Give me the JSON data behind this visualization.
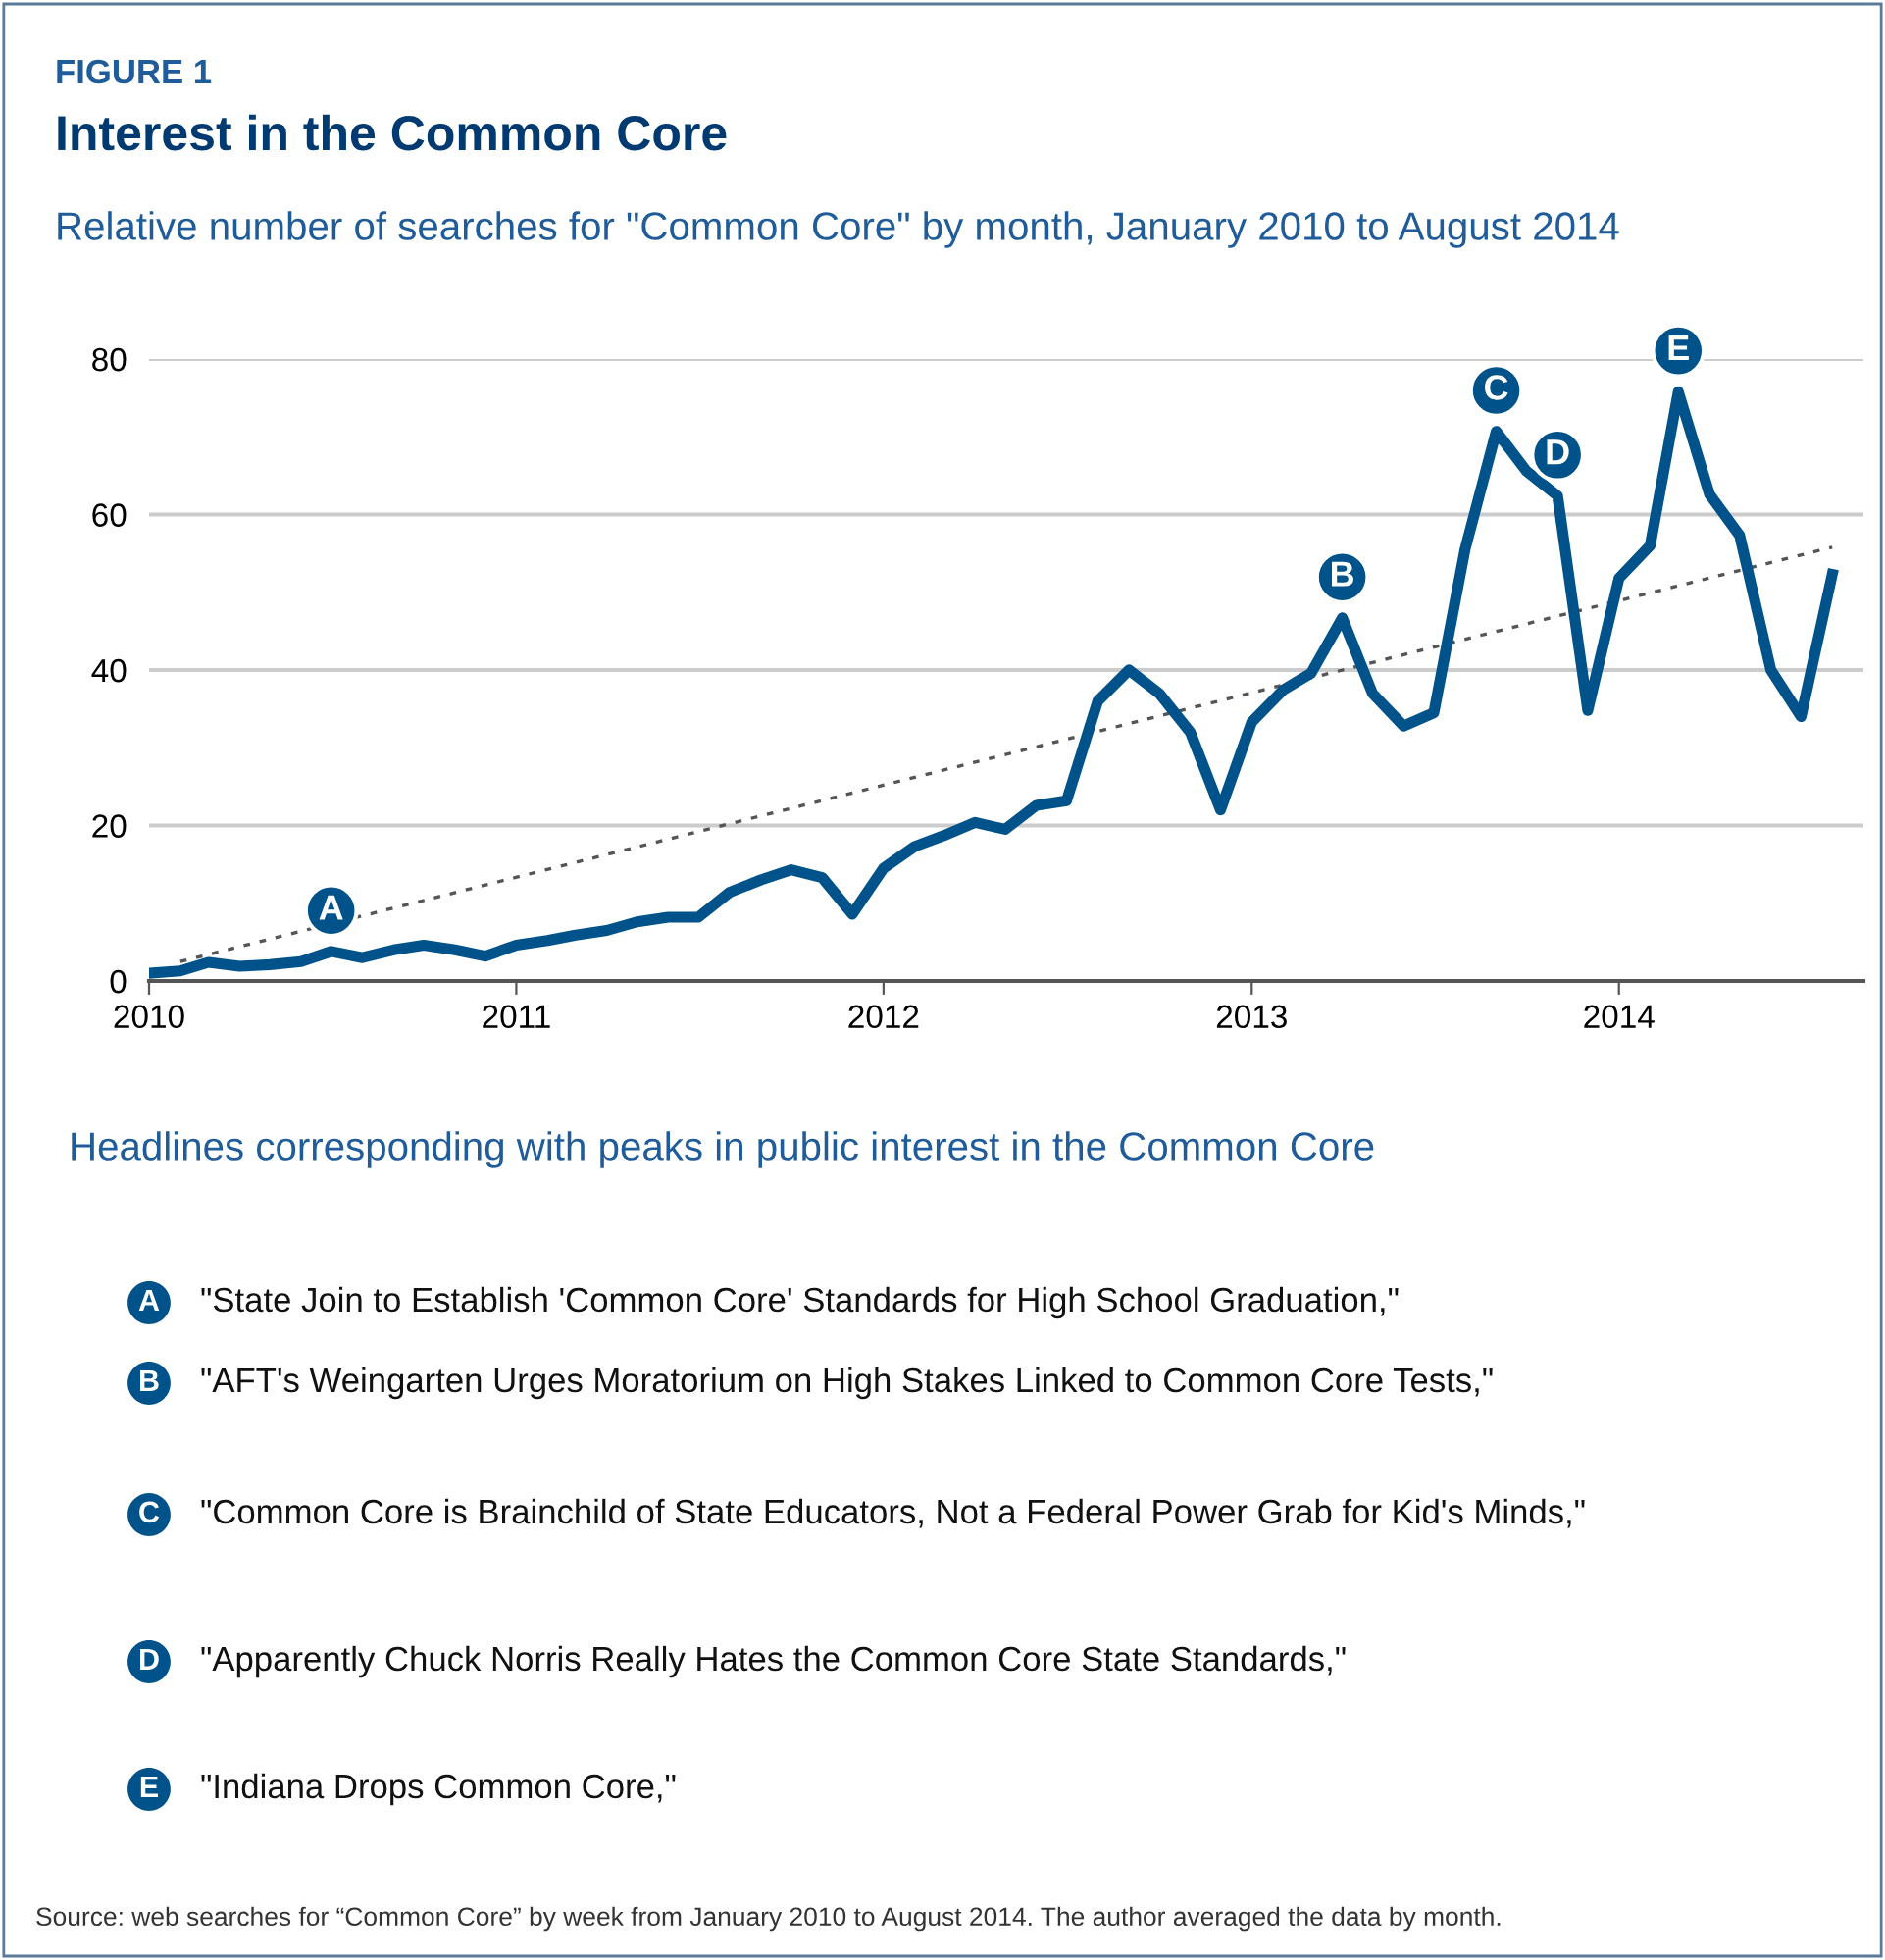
{
  "chart_data": {
    "type": "line",
    "title": "Interest in the Common Core",
    "subtitle": "Relative number of searches for \"Common Core\" by month, January 2010 to August 2014",
    "x": [
      "2010-01",
      "2010-02",
      "2010-03",
      "2010-04",
      "2010-05",
      "2010-06",
      "2010-07",
      "2010-08",
      "2010-09",
      "2010-10",
      "2010-11",
      "2010-12",
      "2011-01",
      "2011-02",
      "2011-03",
      "2011-04",
      "2011-05",
      "2011-06",
      "2011-07",
      "2011-08",
      "2011-09",
      "2011-10",
      "2011-11",
      "2011-12",
      "2012-01",
      "2012-02",
      "2012-03",
      "2012-04",
      "2012-05",
      "2012-06",
      "2012-07",
      "2012-08",
      "2012-09",
      "2012-10",
      "2012-11",
      "2012-12",
      "2013-01",
      "2013-02",
      "2013-03",
      "2013-04",
      "2013-05",
      "2013-06",
      "2013-07",
      "2013-08",
      "2013-09",
      "2013-10",
      "2013-11",
      "2013-12",
      "2014-01",
      "2014-02",
      "2014-03",
      "2014-04",
      "2014-05",
      "2014-06",
      "2014-07",
      "2014-08"
    ],
    "series": [
      {
        "color": "#00528a",
        "line_style": "solid",
        "values": [
          1.0,
          1.3,
          2.4,
          1.9,
          2.1,
          2.5,
          3.8,
          3.0,
          4.0,
          4.6,
          4.0,
          3.2,
          4.6,
          5.2,
          5.9,
          6.5,
          7.6,
          8.2,
          8.2,
          11.4,
          13.0,
          14.3,
          13.3,
          8.6,
          14.5,
          17.3,
          18.7,
          20.4,
          19.5,
          22.6,
          23.2,
          36.0,
          40.0,
          37.0,
          32.0,
          22.0,
          33.3,
          37.4,
          39.6,
          46.7,
          37.0,
          32.8,
          34.5,
          55.5,
          70.7,
          65.6,
          62.4,
          34.8,
          51.8,
          56.0,
          75.8,
          62.6,
          57.3,
          40.0,
          34.0,
          52.3
        ]
      },
      {
        "color": "#555555",
        "line_style": "dotted",
        "x": [
          "2010-02",
          "2014-08"
        ],
        "values": [
          2.5,
          55.8
        ]
      }
    ],
    "xlim": [
      "2010-01",
      "2014-09"
    ],
    "ylim": [
      0,
      80
    ],
    "yticks": [
      0,
      20,
      40,
      60,
      80
    ],
    "xticks": [
      {
        "value": "2010-01",
        "label": "2010"
      },
      {
        "value": "2011-01",
        "label": "2011"
      },
      {
        "value": "2012-01",
        "label": "2012"
      },
      {
        "value": "2013-01",
        "label": "2013"
      },
      {
        "value": "2014-01",
        "label": "2014"
      }
    ],
    "grid": "y",
    "legend": false,
    "annotations": [
      "FIGURE 1",
      {
        "text": "A",
        "x": "2010-07",
        "y": 3.8
      },
      {
        "text": "B",
        "x": "2013-04",
        "y": 46.7
      },
      {
        "text": "C",
        "x": "2013-09",
        "y": 70.7
      },
      {
        "text": "D",
        "x": "2013-11",
        "y": 62.4
      },
      {
        "text": "E",
        "x": "2014-03",
        "y": 75.8
      },
      "Headlines corresponding with peaks in public interest in the Common Core",
      "\"State Join to Establish 'Common Core' Standards for High School Graduation,\"",
      "\"AFT's Weingarten Urges Moratorium on High Stakes Linked to Common Core Tests,\"",
      "\"Common Core is Brainchild of State Educators, Not a Federal Power Grab for Kid's Minds,\"",
      "\"Apparently Chuck Norris Really Hates the Common Core State Standards,\"",
      "\"Indiana Drops Common Core,\"",
      "Source: web searches for “Common Core” by week from January 2010 to August 2014. The author averaged the data by month."
    ]
  }
}
